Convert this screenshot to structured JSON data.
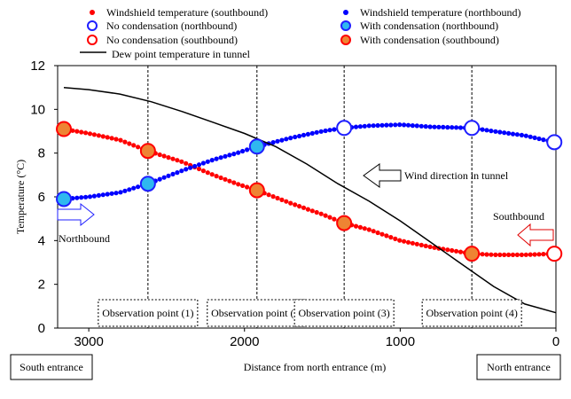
{
  "chart_data": {
    "type": "line",
    "title": "",
    "xlabel": "Distance from north entrance (m)",
    "ylabel": "Temperature (°C)",
    "xlim": [
      3200,
      0
    ],
    "ylim": [
      0,
      12
    ],
    "x_ticks": [
      3000,
      2000,
      1000,
      0
    ],
    "y_ticks": [
      0,
      2,
      4,
      6,
      8,
      10,
      12
    ],
    "grid": false,
    "series": [
      {
        "name": "Windshield temperature (southbound)",
        "style": "dots",
        "color": "#ff0000",
        "x": [
          3160,
          3000,
          2800,
          2620,
          2400,
          2200,
          2050,
          1920,
          1700,
          1500,
          1360,
          1200,
          1000,
          800,
          540,
          400,
          200,
          10
        ],
        "y": [
          9.1,
          8.9,
          8.6,
          8.1,
          7.6,
          7.0,
          6.6,
          6.3,
          5.7,
          5.2,
          4.8,
          4.5,
          4.0,
          3.7,
          3.4,
          3.35,
          3.35,
          3.4
        ]
      },
      {
        "name": "Windshield temperature (northbound)",
        "style": "dots",
        "color": "#0000ff",
        "x": [
          3160,
          3000,
          2800,
          2620,
          2400,
          2200,
          2050,
          1920,
          1700,
          1500,
          1360,
          1200,
          1000,
          800,
          540,
          400,
          200,
          10
        ],
        "y": [
          5.9,
          6.0,
          6.2,
          6.6,
          7.2,
          7.7,
          8.0,
          8.3,
          8.7,
          9.0,
          9.15,
          9.25,
          9.3,
          9.2,
          9.15,
          9.0,
          8.8,
          8.5
        ]
      },
      {
        "name": "Dew point temperature in tunnel",
        "style": "line",
        "color": "#000000",
        "x": [
          3160,
          3000,
          2800,
          2600,
          2400,
          2200,
          2000,
          1800,
          1600,
          1400,
          1200,
          1000,
          800,
          600,
          400,
          200,
          0
        ],
        "y": [
          11.0,
          10.9,
          10.7,
          10.35,
          9.9,
          9.4,
          8.9,
          8.3,
          7.5,
          6.6,
          5.8,
          4.9,
          3.9,
          2.9,
          1.9,
          1.1,
          0.7
        ]
      }
    ],
    "markers": {
      "no_condensation_northbound": {
        "label": "No condensation (northbound)",
        "x": [
          1360,
          540,
          10
        ],
        "y": [
          9.15,
          9.15,
          8.5
        ]
      },
      "no_condensation_southbound": {
        "label": "No condensation (southbound)",
        "x": [
          10
        ],
        "y": [
          3.4
        ]
      },
      "with_condensation_northbound": {
        "label": "With condensation (northbound)",
        "x": [
          3160,
          2620,
          1920
        ],
        "y": [
          5.9,
          6.6,
          8.3
        ]
      },
      "with_condensation_southbound": {
        "label": "With condensation (southbound)",
        "x": [
          3160,
          2620,
          1920,
          1360,
          540
        ],
        "y": [
          9.1,
          8.1,
          6.3,
          4.8,
          3.4
        ]
      }
    },
    "observation_points": [
      {
        "label": "Observation point (1)",
        "x": 2620
      },
      {
        "label": "Observation point (2)",
        "x": 1920
      },
      {
        "label": "Observation point (3)",
        "x": 1360
      },
      {
        "label": "Observation point (4)",
        "x": 540
      }
    ],
    "annotations": {
      "wind": "Wind direction in tunnel",
      "southbound": "Southbound",
      "northbound": "Northbound",
      "south_entrance": "South entrance",
      "north_entrance": "North entrance"
    },
    "legend": {
      "placement": "top",
      "items": [
        {
          "key": "ws_south",
          "label": "Windshield temperature (southbound)"
        },
        {
          "key": "ws_north",
          "label": "Windshield temperature (northbound)"
        },
        {
          "key": "nc_north",
          "label": "No condensation (northbound)"
        },
        {
          "key": "wc_north",
          "label": "With condensation (northbound)"
        },
        {
          "key": "nc_south",
          "label": "No condensation (southbound)"
        },
        {
          "key": "wc_south",
          "label": "With condensation (southbound)"
        },
        {
          "key": "dew",
          "label": "Dew point temperature in tunnel"
        }
      ]
    }
  }
}
